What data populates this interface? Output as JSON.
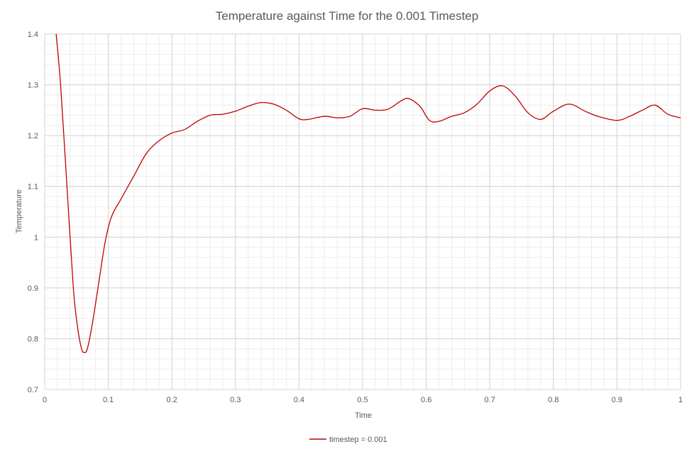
{
  "chart_data": {
    "type": "line",
    "title": "Temperature against Time for the 0.001 Timestep",
    "xlabel": "Time",
    "ylabel": "Temperature",
    "xlim": [
      0,
      1
    ],
    "ylim": [
      0.7,
      1.4
    ],
    "x_ticks": [
      "0",
      "0.1",
      "0.2",
      "0.3",
      "0.4",
      "0.5",
      "0.6",
      "0.7",
      "0.8",
      "0.9",
      "1"
    ],
    "y_ticks": [
      "0.7",
      "0.8",
      "0.9",
      "1",
      "1.1",
      "1.2",
      "1.3",
      "1.4"
    ],
    "grid": true,
    "minor_grid": true,
    "legend_position": "bottom",
    "series": [
      {
        "name": "timestep = 0.001",
        "color": "#c00000",
        "x": [
          0.018,
          0.025,
          0.035,
          0.045,
          0.052,
          0.058,
          0.062,
          0.067,
          0.075,
          0.085,
          0.095,
          0.105,
          0.12,
          0.14,
          0.16,
          0.18,
          0.2,
          0.22,
          0.24,
          0.26,
          0.28,
          0.3,
          0.32,
          0.34,
          0.36,
          0.38,
          0.4,
          0.415,
          0.44,
          0.46,
          0.48,
          0.5,
          0.52,
          0.54,
          0.56,
          0.572,
          0.59,
          0.605,
          0.62,
          0.64,
          0.66,
          0.68,
          0.7,
          0.72,
          0.74,
          0.76,
          0.78,
          0.8,
          0.825,
          0.85,
          0.87,
          0.9,
          0.92,
          0.94,
          0.96,
          0.98,
          1.0
        ],
        "y": [
          1.4,
          1.3,
          1.1,
          0.9,
          0.82,
          0.78,
          0.773,
          0.78,
          0.83,
          0.91,
          0.99,
          1.04,
          1.075,
          1.12,
          1.165,
          1.19,
          1.205,
          1.212,
          1.228,
          1.24,
          1.242,
          1.248,
          1.258,
          1.265,
          1.262,
          1.25,
          1.233,
          1.232,
          1.238,
          1.235,
          1.238,
          1.253,
          1.25,
          1.252,
          1.268,
          1.273,
          1.258,
          1.23,
          1.228,
          1.238,
          1.245,
          1.262,
          1.288,
          1.298,
          1.278,
          1.245,
          1.232,
          1.248,
          1.262,
          1.248,
          1.238,
          1.23,
          1.238,
          1.25,
          1.26,
          1.242,
          1.235
        ]
      }
    ]
  }
}
